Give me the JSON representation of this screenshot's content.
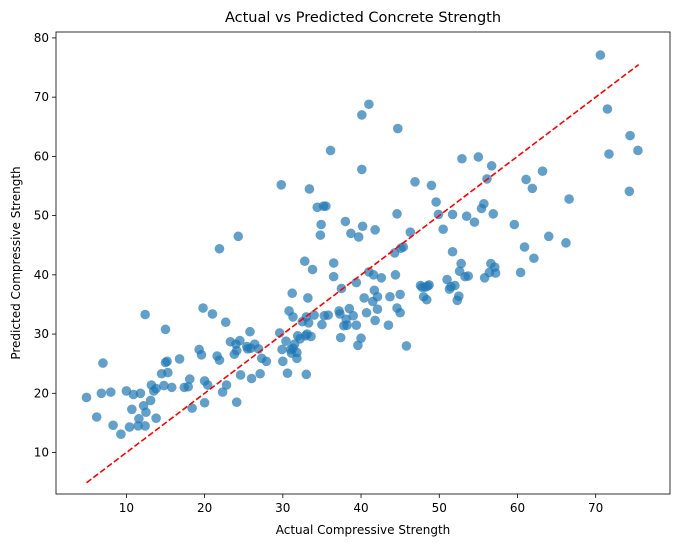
{
  "chart_data": {
    "type": "scatter",
    "title": "Actual vs Predicted Concrete Strength",
    "xlabel": "Actual Compressive Strength",
    "ylabel": "Predicted Compressive Strength",
    "xlim": [
      1.0,
      79.5
    ],
    "ylim": [
      3.0,
      81.0
    ],
    "xticks": [
      10,
      20,
      30,
      40,
      50,
      60,
      70
    ],
    "yticks": [
      10,
      20,
      30,
      40,
      50,
      60,
      70,
      80
    ],
    "grid": false,
    "legend": "none",
    "point_color": "#1f77b4",
    "reference_line": {
      "from": [
        4.9,
        4.9
      ],
      "to": [
        75.5,
        75.5
      ],
      "color": "#ff0000",
      "style": "dashed"
    },
    "points": [
      [
        4.9,
        19.3
      ],
      [
        6.2,
        16.0
      ],
      [
        6.8,
        20.0
      ],
      [
        7.0,
        25.1
      ],
      [
        8.0,
        20.2
      ],
      [
        8.3,
        14.6
      ],
      [
        9.3,
        13.1
      ],
      [
        10.0,
        20.4
      ],
      [
        10.4,
        14.3
      ],
      [
        10.7,
        17.3
      ],
      [
        10.9,
        19.8
      ],
      [
        11.5,
        14.5
      ],
      [
        11.6,
        15.7
      ],
      [
        11.8,
        20.0
      ],
      [
        12.2,
        17.9
      ],
      [
        12.4,
        33.3
      ],
      [
        12.4,
        14.5
      ],
      [
        12.5,
        16.8
      ],
      [
        13.1,
        18.8
      ],
      [
        13.2,
        21.4
      ],
      [
        13.5,
        20.4
      ],
      [
        13.8,
        20.8
      ],
      [
        13.8,
        15.8
      ],
      [
        14.5,
        23.3
      ],
      [
        14.8,
        21.3
      ],
      [
        15.0,
        25.2
      ],
      [
        15.0,
        30.8
      ],
      [
        15.2,
        25.4
      ],
      [
        15.3,
        23.5
      ],
      [
        15.8,
        21.0
      ],
      [
        16.8,
        25.8
      ],
      [
        17.4,
        21.0
      ],
      [
        17.9,
        21.1
      ],
      [
        18.1,
        22.4
      ],
      [
        18.4,
        17.5
      ],
      [
        19.3,
        27.4
      ],
      [
        19.6,
        26.5
      ],
      [
        19.8,
        34.4
      ],
      [
        20.0,
        18.4
      ],
      [
        20.0,
        22.1
      ],
      [
        20.4,
        21.4
      ],
      [
        21.0,
        33.4
      ],
      [
        21.6,
        26.3
      ],
      [
        21.9,
        44.4
      ],
      [
        21.9,
        25.6
      ],
      [
        22.3,
        20.2
      ],
      [
        22.7,
        32.0
      ],
      [
        22.8,
        21.4
      ],
      [
        23.3,
        28.7
      ],
      [
        23.8,
        26.6
      ],
      [
        24.0,
        28.3
      ],
      [
        24.1,
        27.2
      ],
      [
        24.1,
        18.5
      ],
      [
        24.3,
        46.5
      ],
      [
        24.5,
        28.9
      ],
      [
        24.6,
        23.1
      ],
      [
        25.4,
        27.9
      ],
      [
        25.5,
        27.5
      ],
      [
        25.8,
        30.4
      ],
      [
        25.9,
        27.6
      ],
      [
        26.0,
        22.5
      ],
      [
        26.4,
        28.3
      ],
      [
        26.9,
        27.5
      ],
      [
        27.1,
        23.3
      ],
      [
        27.3,
        25.9
      ],
      [
        27.9,
        25.4
      ],
      [
        29.6,
        30.2
      ],
      [
        29.8,
        55.2
      ],
      [
        29.9,
        27.4
      ],
      [
        30.0,
        25.4
      ],
      [
        30.4,
        28.8
      ],
      [
        30.6,
        23.4
      ],
      [
        30.8,
        33.9
      ],
      [
        31.0,
        27.4
      ],
      [
        31.1,
        26.8
      ],
      [
        31.2,
        36.9
      ],
      [
        31.3,
        32.9
      ],
      [
        31.3,
        27.6
      ],
      [
        31.5,
        28.3
      ],
      [
        31.8,
        25.9
      ],
      [
        31.8,
        26.9
      ],
      [
        31.9,
        29.7
      ],
      [
        32.2,
        29.2
      ],
      [
        32.5,
        32.1
      ],
      [
        32.8,
        42.3
      ],
      [
        32.9,
        29.7
      ],
      [
        33.0,
        32.9
      ],
      [
        33.0,
        23.2
      ],
      [
        33.1,
        30.0
      ],
      [
        33.2,
        36.1
      ],
      [
        33.3,
        31.9
      ],
      [
        33.4,
        54.5
      ],
      [
        33.6,
        29.6
      ],
      [
        33.8,
        40.9
      ],
      [
        34.0,
        33.2
      ],
      [
        34.4,
        51.4
      ],
      [
        34.8,
        46.7
      ],
      [
        34.9,
        48.5
      ],
      [
        35.0,
        31.6
      ],
      [
        35.2,
        51.6
      ],
      [
        35.3,
        33.1
      ],
      [
        35.5,
        51.6
      ],
      [
        35.8,
        33.2
      ],
      [
        36.1,
        61.0
      ],
      [
        36.5,
        42.0
      ],
      [
        36.5,
        39.7
      ],
      [
        37.2,
        33.9
      ],
      [
        37.3,
        33.4
      ],
      [
        37.4,
        29.4
      ],
      [
        37.5,
        37.7
      ],
      [
        37.8,
        31.4
      ],
      [
        38.0,
        49.0
      ],
      [
        38.1,
        32.5
      ],
      [
        38.2,
        31.5
      ],
      [
        38.5,
        34.3
      ],
      [
        38.7,
        47.0
      ],
      [
        39.0,
        33.1
      ],
      [
        39.4,
        31.5
      ],
      [
        39.4,
        38.7
      ],
      [
        39.6,
        28.1
      ],
      [
        39.7,
        46.4
      ],
      [
        40.0,
        29.3
      ],
      [
        40.1,
        67.0
      ],
      [
        40.1,
        57.8
      ],
      [
        40.2,
        48.2
      ],
      [
        40.4,
        36.1
      ],
      [
        40.7,
        33.6
      ],
      [
        41.0,
        40.5
      ],
      [
        41.0,
        68.8
      ],
      [
        41.5,
        35.5
      ],
      [
        41.6,
        40.0
      ],
      [
        41.7,
        37.4
      ],
      [
        41.8,
        47.6
      ],
      [
        41.8,
        32.3
      ],
      [
        42.1,
        36.3
      ],
      [
        42.1,
        34.2
      ],
      [
        42.6,
        39.5
      ],
      [
        43.5,
        31.5
      ],
      [
        43.7,
        36.3
      ],
      [
        44.3,
        43.7
      ],
      [
        44.4,
        40.0
      ],
      [
        44.6,
        50.3
      ],
      [
        44.6,
        34.4
      ],
      [
        44.7,
        64.7
      ],
      [
        45.0,
        36.7
      ],
      [
        45.0,
        33.6
      ],
      [
        45.1,
        44.5
      ],
      [
        45.4,
        44.7
      ],
      [
        45.8,
        28.0
      ],
      [
        46.3,
        47.2
      ],
      [
        46.9,
        55.7
      ],
      [
        47.6,
        38.2
      ],
      [
        47.8,
        37.9
      ],
      [
        48.0,
        36.3
      ],
      [
        48.2,
        37.9
      ],
      [
        48.4,
        35.8
      ],
      [
        48.5,
        38.1
      ],
      [
        48.7,
        38.3
      ],
      [
        49.0,
        55.1
      ],
      [
        49.6,
        52.3
      ],
      [
        49.9,
        50.2
      ],
      [
        50.5,
        47.7
      ],
      [
        51.0,
        39.2
      ],
      [
        51.3,
        37.6
      ],
      [
        51.5,
        38.0
      ],
      [
        51.7,
        43.9
      ],
      [
        51.7,
        50.2
      ],
      [
        52.0,
        38.2
      ],
      [
        52.3,
        35.7
      ],
      [
        52.5,
        36.4
      ],
      [
        52.6,
        40.6
      ],
      [
        52.8,
        41.9
      ],
      [
        52.9,
        59.6
      ],
      [
        53.3,
        39.7
      ],
      [
        53.5,
        49.9
      ],
      [
        53.7,
        39.8
      ],
      [
        54.5,
        48.9
      ],
      [
        55.0,
        59.9
      ],
      [
        55.4,
        51.2
      ],
      [
        55.7,
        52.0
      ],
      [
        55.8,
        39.5
      ],
      [
        56.1,
        56.2
      ],
      [
        56.4,
        40.4
      ],
      [
        56.6,
        41.9
      ],
      [
        56.7,
        58.4
      ],
      [
        56.9,
        50.3
      ],
      [
        57.1,
        41.3
      ],
      [
        57.2,
        40.3
      ],
      [
        59.6,
        48.5
      ],
      [
        60.4,
        40.4
      ],
      [
        60.9,
        44.7
      ],
      [
        61.1,
        56.1
      ],
      [
        61.9,
        54.6
      ],
      [
        62.1,
        42.8
      ],
      [
        63.2,
        57.5
      ],
      [
        64.0,
        46.5
      ],
      [
        66.2,
        45.4
      ],
      [
        66.6,
        52.8
      ],
      [
        70.6,
        77.1
      ],
      [
        71.5,
        68.0
      ],
      [
        71.7,
        60.4
      ],
      [
        74.3,
        54.1
      ],
      [
        74.4,
        63.5
      ],
      [
        75.4,
        61.0
      ]
    ]
  }
}
